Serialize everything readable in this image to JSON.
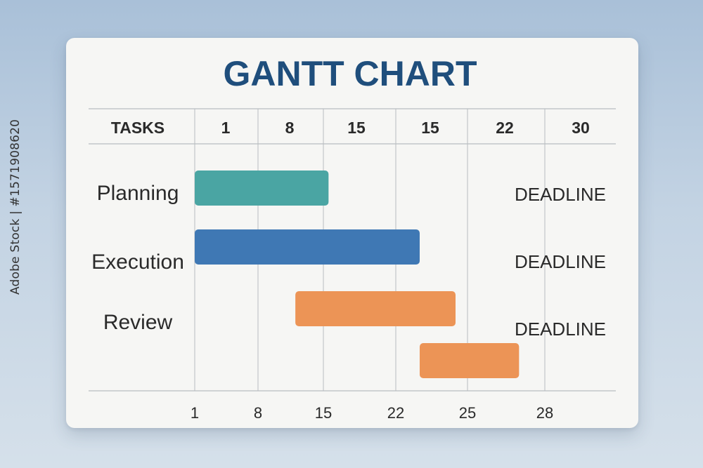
{
  "chart_data": {
    "type": "bar",
    "title": "GANTT CHART",
    "tasks_header": "TASKS",
    "header_ticks": [
      "1",
      "8",
      "15",
      "15",
      "22",
      "30"
    ],
    "x_ticks": [
      1,
      8,
      15,
      22,
      25,
      28
    ],
    "xlim": [
      1,
      30
    ],
    "grid": true,
    "tasks": [
      {
        "label": "Planning",
        "start": 1,
        "end": 15.5,
        "color": "#4aa5a3",
        "annotation": "DEADLINE"
      },
      {
        "label": "Execution",
        "start": 1,
        "end": 23,
        "color": "#3f78b4",
        "annotation": "DEADLINE"
      },
      {
        "label": "Review",
        "start": 12,
        "end": 24.5,
        "color": "#ec9456",
        "annotation": "DEADLINE"
      },
      {
        "label": "",
        "start": 23,
        "end": 27,
        "color": "#ec9456",
        "annotation": ""
      }
    ]
  },
  "colors": {
    "title": "#1f4e7c",
    "text": "#2a2a2a",
    "grid": "#b8bcc0"
  },
  "watermark_id": "Adobe Stock | #1571908620"
}
